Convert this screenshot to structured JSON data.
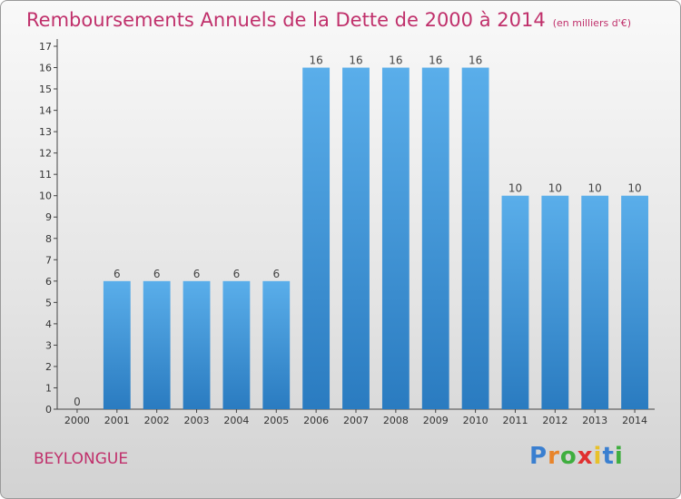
{
  "chart_data": {
    "type": "bar",
    "title": "Remboursements Annuels de la Dette de 2000 à 2014",
    "subtitle": "(en milliers d'€)",
    "categories": [
      "2000",
      "2001",
      "2002",
      "2003",
      "2004",
      "2005",
      "2006",
      "2007",
      "2008",
      "2009",
      "2010",
      "2011",
      "2012",
      "2013",
      "2014"
    ],
    "values": [
      0,
      6,
      6,
      6,
      6,
      6,
      16,
      16,
      16,
      16,
      16,
      10,
      10,
      10,
      10
    ],
    "data_labels": [
      "0",
      "6",
      "6",
      "6",
      "6",
      "6",
      "16",
      "16",
      "16",
      "16",
      "16",
      "10",
      "10",
      "10",
      "10"
    ],
    "y_ticks": [
      "0",
      "1",
      "2",
      "3",
      "4",
      "5",
      "6",
      "7",
      "8",
      "9",
      "10",
      "11",
      "12",
      "13",
      "14",
      "15",
      "16",
      "17"
    ],
    "ylim": [
      0,
      17
    ],
    "grid": false,
    "bar_color": "#3a8fd8"
  },
  "footer": {
    "town": "BEYLONGUE",
    "logo_parts": [
      "P",
      "r",
      "o",
      "x",
      "i",
      "t",
      "i"
    ],
    "logo_colors": [
      "#3a7fd0",
      "#e8842a",
      "#3fae3f",
      "#e03030",
      "#e8c12a",
      "#3a7fd0",
      "#3fae3f"
    ]
  }
}
